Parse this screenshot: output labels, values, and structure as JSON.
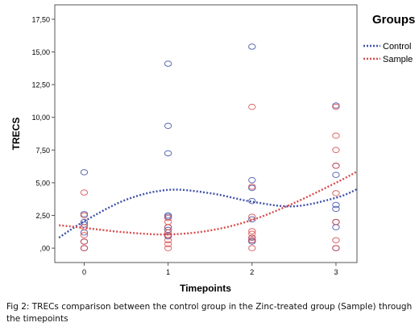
{
  "chart_data": {
    "type": "scatter",
    "xlabel": "Timepoints",
    "ylabel": "TRECS",
    "x_ticks": [
      "0",
      "1",
      "2",
      "3"
    ],
    "y_ticks": [
      ",00",
      "2,50",
      "5,00",
      "7,50",
      "10,00",
      "12,50",
      "15,00",
      "17,50"
    ],
    "xlim": [
      -0.35,
      3.25
    ],
    "ylim": [
      -1.1,
      18.6
    ],
    "grid": false,
    "legend": {
      "title": "Groups",
      "placement": "right"
    },
    "series": [
      {
        "name": "Control",
        "color": "#3f4fa8",
        "points": [
          [
            0,
            5.8
          ],
          [
            0,
            2.6
          ],
          [
            0,
            2.0
          ],
          [
            0,
            1.8
          ],
          [
            0,
            1.2
          ],
          [
            0,
            0.5
          ],
          [
            0,
            0.0
          ],
          [
            1,
            14.1
          ],
          [
            1,
            9.35
          ],
          [
            1,
            7.25
          ],
          [
            1,
            2.5
          ],
          [
            1,
            2.4
          ],
          [
            1,
            1.6
          ],
          [
            1,
            1.4
          ],
          [
            1,
            1.0
          ],
          [
            1,
            0.9
          ],
          [
            2,
            15.4
          ],
          [
            2,
            5.2
          ],
          [
            2,
            4.6
          ],
          [
            2,
            3.6
          ],
          [
            2,
            2.2
          ],
          [
            2,
            0.8
          ],
          [
            2,
            0.6
          ],
          [
            2,
            0.5
          ],
          [
            3,
            10.9
          ],
          [
            3,
            6.3
          ],
          [
            3,
            5.6
          ],
          [
            3,
            3.3
          ],
          [
            3,
            3.0
          ],
          [
            3,
            2.0
          ],
          [
            3,
            1.6
          ],
          [
            3,
            0.0
          ]
        ],
        "fit": [
          [
            -0.3,
            0.8
          ],
          [
            0,
            2.05
          ],
          [
            0.5,
            3.7
          ],
          [
            1,
            4.45
          ],
          [
            1.5,
            4.2
          ],
          [
            2,
            3.55
          ],
          [
            2.5,
            3.2
          ],
          [
            3,
            3.85
          ],
          [
            3.25,
            4.5
          ]
        ]
      },
      {
        "name": "Sample",
        "color": "#d94a4a",
        "points": [
          [
            0,
            4.25
          ],
          [
            0,
            2.5
          ],
          [
            0,
            1.6
          ],
          [
            0,
            1.0
          ],
          [
            0,
            0.5
          ],
          [
            0,
            0.0
          ],
          [
            1,
            2.3
          ],
          [
            1,
            2.0
          ],
          [
            1,
            1.6
          ],
          [
            1,
            1.2
          ],
          [
            1,
            1.0
          ],
          [
            1,
            0.6
          ],
          [
            1,
            0.3
          ],
          [
            1,
            0.0
          ],
          [
            2,
            10.8
          ],
          [
            2,
            4.7
          ],
          [
            2,
            2.4
          ],
          [
            2,
            1.3
          ],
          [
            2,
            1.1
          ],
          [
            2,
            0.8
          ],
          [
            2,
            0.6
          ],
          [
            2,
            0.0
          ],
          [
            3,
            10.8
          ],
          [
            3,
            8.6
          ],
          [
            3,
            7.5
          ],
          [
            3,
            6.3
          ],
          [
            3,
            4.2
          ],
          [
            3,
            2.0
          ],
          [
            3,
            0.6
          ],
          [
            3,
            0.0
          ]
        ],
        "fit": [
          [
            -0.3,
            1.75
          ],
          [
            0,
            1.55
          ],
          [
            0.5,
            1.2
          ],
          [
            1,
            1.05
          ],
          [
            1.5,
            1.35
          ],
          [
            2,
            2.15
          ],
          [
            2.5,
            3.45
          ],
          [
            3,
            5.0
          ],
          [
            3.25,
            5.85
          ]
        ]
      }
    ]
  },
  "caption": "Fig 2: TRECs comparison between the control group in the Zinc-treated group (Sample) through the timepoints"
}
